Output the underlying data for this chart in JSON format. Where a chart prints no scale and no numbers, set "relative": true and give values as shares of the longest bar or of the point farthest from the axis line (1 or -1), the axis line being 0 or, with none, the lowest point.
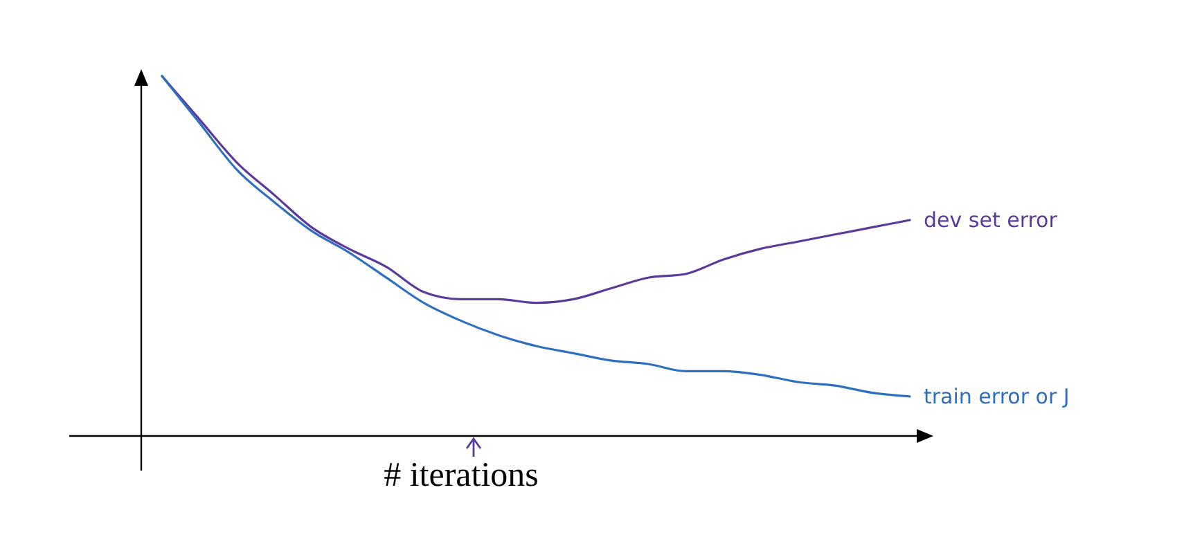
{
  "chart_data": {
    "type": "line",
    "relative": true,
    "xlabel": "# iterations",
    "categories": [
      null,
      null,
      null,
      null,
      null,
      null,
      null,
      null,
      null,
      null,
      null,
      null,
      null,
      null,
      null,
      null,
      null,
      null,
      null,
      null,
      null
    ],
    "series": [
      {
        "name": "dev set error",
        "color": "#5b3a9a",
        "values": [
          1,
          0.88,
          0.76,
          0.67,
          0.58,
          0.52,
          0.47,
          0.4,
          0.38,
          0.38,
          0.37,
          0.38,
          0.41,
          0.44,
          0.45,
          0.49,
          0.52,
          0.54,
          0.56,
          0.58,
          0.6
        ]
      },
      {
        "name": "train error or J",
        "color": "#2f6fc0",
        "values": [
          1,
          0.87,
          0.74,
          0.65,
          0.57,
          0.51,
          0.44,
          0.37,
          0.32,
          0.28,
          0.25,
          0.23,
          0.21,
          0.2,
          0.18,
          0.18,
          0.17,
          0.15,
          0.14,
          0.12,
          0.11
        ]
      }
    ]
  }
}
